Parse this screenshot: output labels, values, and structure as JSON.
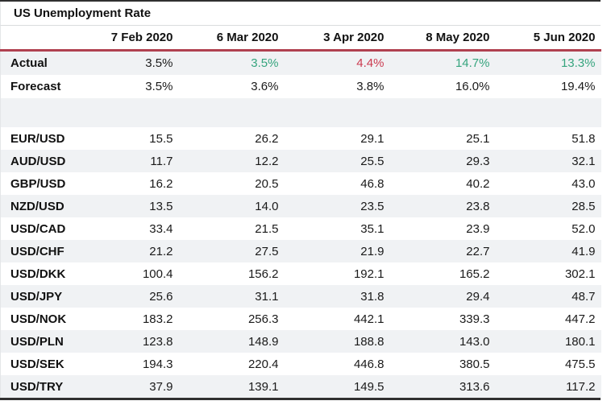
{
  "title": "US Unemployment Rate",
  "colors": {
    "positive_green": "#35a47d",
    "negative_red": "#cb3a4f",
    "header_rule_red": "#b04150",
    "alt_row_bg": "#f0f2f4",
    "frame_border": "#303030"
  },
  "chart_data": {
    "type": "table",
    "title": "US Unemployment Rate",
    "columns": [
      "",
      "7 Feb 2020",
      "6 Mar 2020",
      "3 Apr 2020",
      "8 May 2020",
      "5 Jun 2020"
    ],
    "rows": [
      {
        "label": "Actual",
        "values": [
          "3.5%",
          "3.5%",
          "4.4%",
          "14.7%",
          "13.3%"
        ],
        "colors": [
          "default",
          "green",
          "red",
          "green",
          "green"
        ]
      },
      {
        "label": "Forecast",
        "values": [
          "3.5%",
          "3.6%",
          "3.8%",
          "16.0%",
          "19.4%"
        ]
      },
      {
        "spacer": true
      },
      {
        "label": "EUR/USD",
        "values": [
          "15.5",
          "26.2",
          "29.1",
          "25.1",
          "51.8"
        ]
      },
      {
        "label": "AUD/USD",
        "values": [
          "11.7",
          "12.2",
          "25.5",
          "29.3",
          "32.1"
        ]
      },
      {
        "label": "GBP/USD",
        "values": [
          "16.2",
          "20.5",
          "46.8",
          "40.2",
          "43.0"
        ]
      },
      {
        "label": "NZD/USD",
        "values": [
          "13.5",
          "14.0",
          "23.5",
          "23.8",
          "28.5"
        ]
      },
      {
        "label": "USD/CAD",
        "values": [
          "33.4",
          "21.5",
          "35.1",
          "23.9",
          "52.0"
        ]
      },
      {
        "label": "USD/CHF",
        "values": [
          "21.2",
          "27.5",
          "21.9",
          "22.7",
          "41.9"
        ]
      },
      {
        "label": "USD/DKK",
        "values": [
          "100.4",
          "156.2",
          "192.1",
          "165.2",
          "302.1"
        ]
      },
      {
        "label": "USD/JPY",
        "values": [
          "25.6",
          "31.1",
          "31.8",
          "29.4",
          "48.7"
        ]
      },
      {
        "label": "USD/NOK",
        "values": [
          "183.2",
          "256.3",
          "442.1",
          "339.3",
          "447.2"
        ]
      },
      {
        "label": "USD/PLN",
        "values": [
          "123.8",
          "148.9",
          "188.8",
          "143.0",
          "180.1"
        ]
      },
      {
        "label": "USD/SEK",
        "values": [
          "194.3",
          "220.4",
          "446.8",
          "380.5",
          "475.5"
        ]
      },
      {
        "label": "USD/TRY",
        "values": [
          "37.9",
          "139.1",
          "149.5",
          "313.6",
          "117.2"
        ]
      }
    ]
  }
}
